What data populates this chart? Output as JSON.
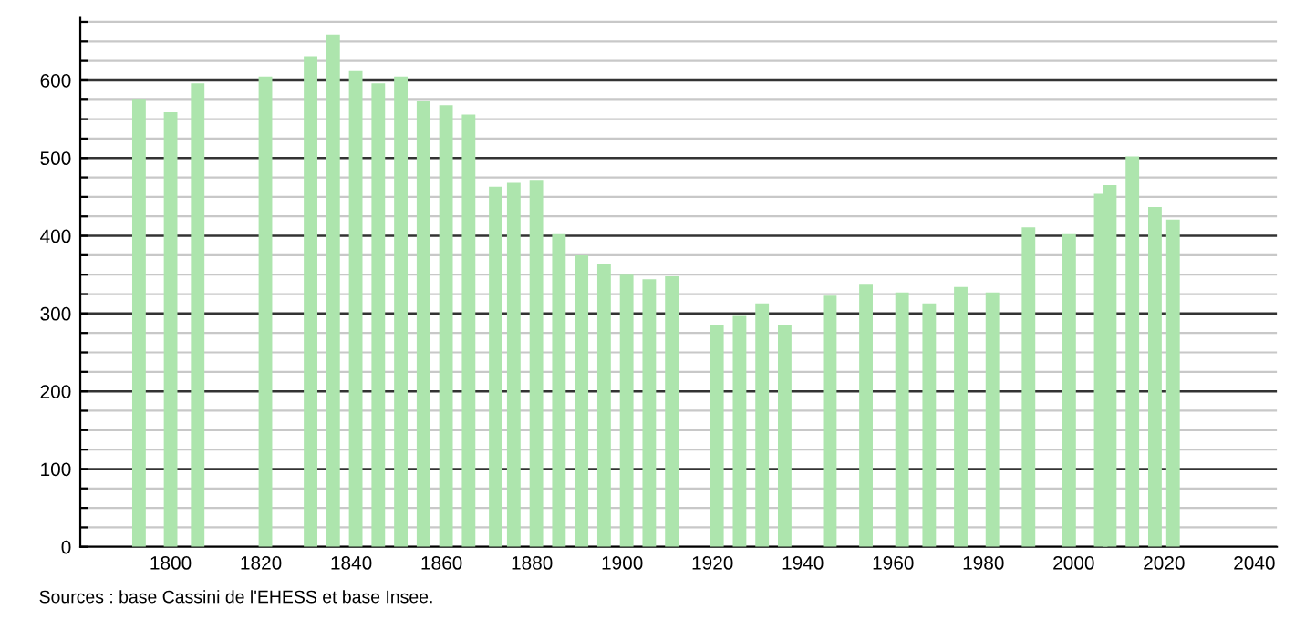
{
  "chart_data": {
    "type": "bar",
    "color": "#ade5ad",
    "x": [
      1793,
      1800,
      1806,
      1821,
      1831,
      1836,
      1841,
      1846,
      1851,
      1856,
      1861,
      1866,
      1872,
      1876,
      1881,
      1886,
      1891,
      1896,
      1901,
      1906,
      1911,
      1921,
      1926,
      1931,
      1936,
      1946,
      1954,
      1962,
      1968,
      1975,
      1982,
      1990,
      1999,
      2006,
      2008,
      2013,
      2018,
      2022
    ],
    "values": [
      575,
      559,
      596,
      605,
      631,
      659,
      612,
      596,
      605,
      573,
      568,
      556,
      463,
      468,
      472,
      402,
      375,
      363,
      350,
      344,
      348,
      285,
      297,
      313,
      285,
      323,
      337,
      327,
      313,
      334,
      327,
      411,
      402,
      454,
      465,
      502,
      437,
      421
    ],
    "xlim": [
      1780,
      2045
    ],
    "xticks": [
      1800,
      1820,
      1840,
      1860,
      1880,
      1900,
      1920,
      1940,
      1960,
      1980,
      2000,
      2020,
      2040
    ],
    "ylim": [
      0,
      680
    ],
    "yticks": [
      0,
      {
        "value": 25,
        "label": null
      },
      {
        "value": 50,
        "label": null
      },
      {
        "value": 75,
        "label": null
      },
      100,
      {
        "value": 125,
        "label": null
      },
      {
        "value": 150,
        "label": null
      },
      {
        "value": 175,
        "label": null
      },
      200,
      {
        "value": 225,
        "label": null
      },
      {
        "value": 250,
        "label": null
      },
      {
        "value": 275,
        "label": null
      },
      300,
      {
        "value": 325,
        "label": null
      },
      {
        "value": 350,
        "label": null
      },
      {
        "value": 375,
        "label": null
      },
      400,
      {
        "value": 425,
        "label": null
      },
      {
        "value": 450,
        "label": null
      },
      {
        "value": 475,
        "label": null
      },
      500,
      {
        "value": 525,
        "label": null
      },
      {
        "value": 550,
        "label": null
      },
      {
        "value": 575,
        "label": null
      },
      600,
      {
        "value": 625,
        "label": null
      },
      {
        "value": 650,
        "label": null
      },
      {
        "value": 675,
        "label": null
      }
    ],
    "grid": "y",
    "annotations": [
      "Sources : base Cassini de l'EHESS et base Insee."
    ]
  }
}
